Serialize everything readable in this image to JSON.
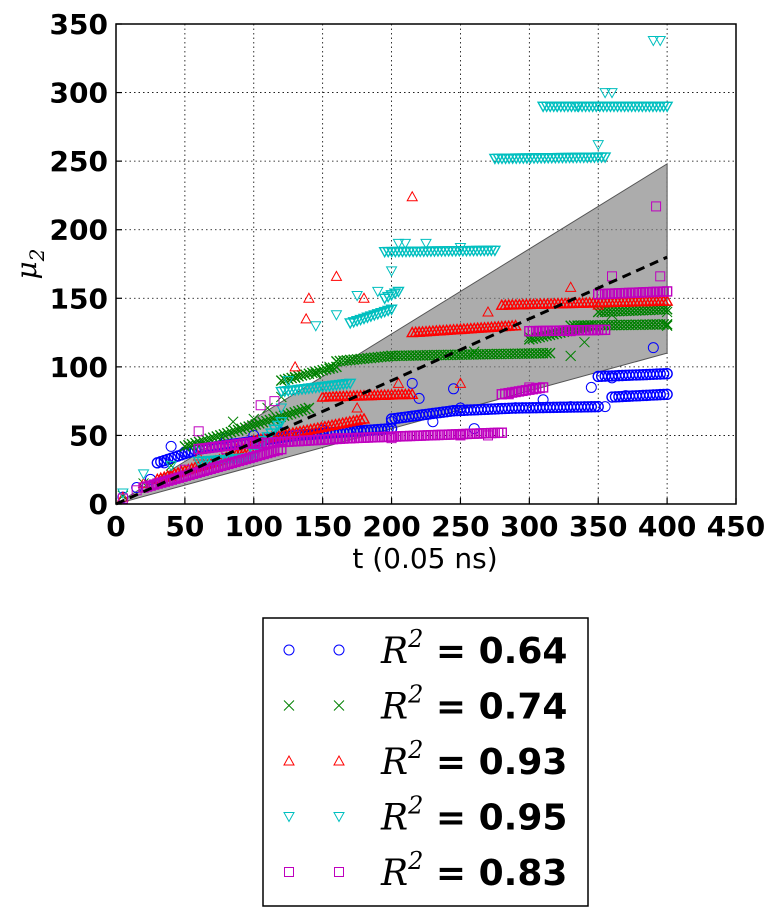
{
  "chart_data": {
    "type": "scatter",
    "title": "",
    "xlabel": "t (0.05 ns)",
    "ylabel": "μ2",
    "ylabel_base": "μ",
    "ylabel_sub": "2",
    "xlim": [
      0,
      450
    ],
    "ylim": [
      0,
      350
    ],
    "xticks": [
      "0",
      "50",
      "100",
      "150",
      "200",
      "250",
      "300",
      "350",
      "400",
      "450"
    ],
    "yticks": [
      "0",
      "50",
      "100",
      "150",
      "200",
      "250",
      "300",
      "350"
    ],
    "grid": true,
    "legend_position": "below",
    "fit_line": {
      "style": "dashed",
      "color": "#000000",
      "x": [
        0,
        400
      ],
      "y": [
        0,
        180
      ]
    },
    "confidence_band": {
      "color": "#808080",
      "x": [
        0,
        400
      ],
      "upper": [
        0,
        248
      ],
      "lower": [
        0,
        110
      ]
    },
    "series": [
      {
        "marker": "circle",
        "color": "#0000ff",
        "legend_label": "R2 = 0.64",
        "points": [
          [
            5,
            5
          ],
          [
            15,
            12
          ],
          [
            25,
            18
          ],
          [
            35,
            30
          ],
          [
            40,
            42
          ],
          [
            50,
            38
          ],
          [
            60,
            42
          ],
          [
            80,
            48
          ],
          [
            100,
            50
          ],
          [
            120,
            52
          ],
          [
            150,
            54
          ],
          [
            175,
            55
          ],
          [
            200,
            60
          ],
          [
            215,
            88
          ],
          [
            220,
            77
          ],
          [
            230,
            60
          ],
          [
            245,
            84
          ],
          [
            250,
            70
          ],
          [
            260,
            55
          ],
          [
            270,
            69
          ],
          [
            300,
            70
          ],
          [
            310,
            76
          ],
          [
            330,
            71
          ],
          [
            345,
            85
          ],
          [
            355,
            71
          ],
          [
            360,
            92
          ],
          [
            370,
            79
          ],
          [
            385,
            79
          ],
          [
            390,
            114
          ],
          [
            400,
            95
          ]
        ],
        "runs": [
          [
            30,
            30,
            60,
            40
          ],
          [
            60,
            40,
            130,
            50
          ],
          [
            130,
            50,
            200,
            55
          ],
          [
            200,
            62,
            245,
            68
          ],
          [
            245,
            68,
            290,
            70
          ],
          [
            290,
            70,
            350,
            71
          ],
          [
            350,
            93,
            400,
            95
          ],
          [
            360,
            78,
            400,
            80
          ]
        ]
      },
      {
        "marker": "x",
        "color": "#008000",
        "legend_label": "R2 = 0.74",
        "points": [
          [
            5,
            6
          ],
          [
            20,
            15
          ],
          [
            40,
            28
          ],
          [
            60,
            42
          ],
          [
            85,
            60
          ],
          [
            100,
            62
          ],
          [
            110,
            70
          ],
          [
            120,
            78
          ],
          [
            130,
            92
          ],
          [
            145,
            95
          ],
          [
            155,
            100
          ],
          [
            170,
            105
          ],
          [
            200,
            108
          ],
          [
            260,
            111
          ],
          [
            300,
            122
          ],
          [
            330,
            108
          ],
          [
            340,
            118
          ],
          [
            360,
            138
          ],
          [
            400,
            140
          ],
          [
            400,
            130
          ]
        ],
        "runs": [
          [
            50,
            42,
            140,
            70
          ],
          [
            120,
            90,
            160,
            100
          ],
          [
            160,
            104,
            200,
            108
          ],
          [
            200,
            108,
            315,
            110
          ],
          [
            300,
            120,
            345,
            130
          ],
          [
            330,
            130,
            400,
            131
          ],
          [
            350,
            140,
            400,
            142
          ]
        ]
      },
      {
        "marker": "triangle-up",
        "color": "#ff0000",
        "legend_label": "R2 = 0.93",
        "points": [
          [
            5,
            5
          ],
          [
            20,
            15
          ],
          [
            40,
            20
          ],
          [
            60,
            35
          ],
          [
            90,
            44
          ],
          [
            130,
            100
          ],
          [
            138,
            135
          ],
          [
            140,
            150
          ],
          [
            160,
            166
          ],
          [
            175,
            70
          ],
          [
            180,
            150
          ],
          [
            205,
            88
          ],
          [
            215,
            224
          ],
          [
            250,
            88
          ],
          [
            270,
            140
          ],
          [
            290,
            130
          ],
          [
            330,
            158
          ],
          [
            350,
            145
          ],
          [
            400,
            148
          ]
        ],
        "runs": [
          [
            30,
            18,
            100,
            40
          ],
          [
            100,
            46,
            180,
            62
          ],
          [
            150,
            78,
            215,
            80
          ],
          [
            215,
            125,
            290,
            130
          ],
          [
            280,
            145,
            400,
            148
          ]
        ]
      },
      {
        "marker": "triangle-down",
        "color": "#00bfbf",
        "legend_label": "R2 = 0.95",
        "points": [
          [
            5,
            8
          ],
          [
            20,
            22
          ],
          [
            40,
            28
          ],
          [
            60,
            38
          ],
          [
            75,
            31
          ],
          [
            100,
            37
          ],
          [
            120,
            70
          ],
          [
            125,
            90
          ],
          [
            145,
            130
          ],
          [
            160,
            138
          ],
          [
            175,
            152
          ],
          [
            190,
            155
          ],
          [
            200,
            170
          ],
          [
            205,
            190
          ],
          [
            210,
            190
          ],
          [
            225,
            190
          ],
          [
            250,
            187
          ],
          [
            310,
            290
          ],
          [
            320,
            290
          ],
          [
            335,
            290
          ],
          [
            350,
            262
          ],
          [
            355,
            300
          ],
          [
            360,
            300
          ],
          [
            390,
            338
          ],
          [
            395,
            338
          ]
        ],
        "runs": [
          [
            60,
            31,
            100,
            34
          ],
          [
            100,
            38,
            120,
            60
          ],
          [
            120,
            82,
            170,
            88
          ],
          [
            170,
            132,
            200,
            142
          ],
          [
            195,
            150,
            205,
            155
          ],
          [
            195,
            184,
            275,
            185
          ],
          [
            275,
            252,
            355,
            253
          ],
          [
            310,
            290,
            400,
            290
          ]
        ]
      },
      {
        "marker": "square",
        "color": "#bf00bf",
        "legend_label": "R2 = 0.83",
        "points": [
          [
            5,
            4
          ],
          [
            15,
            10
          ],
          [
            30,
            15
          ],
          [
            50,
            25
          ],
          [
            60,
            53
          ],
          [
            80,
            40
          ],
          [
            105,
            72
          ],
          [
            115,
            75
          ],
          [
            130,
            50
          ],
          [
            160,
            48
          ],
          [
            200,
            48
          ],
          [
            250,
            50
          ],
          [
            270,
            50
          ],
          [
            285,
            80
          ],
          [
            300,
            85
          ],
          [
            305,
            126
          ],
          [
            330,
            126
          ],
          [
            360,
            166
          ],
          [
            392,
            217
          ],
          [
            395,
            166
          ],
          [
            400,
            155
          ]
        ],
        "runs": [
          [
            20,
            12,
            120,
            40
          ],
          [
            60,
            40,
            100,
            45
          ],
          [
            100,
            44,
            170,
            48
          ],
          [
            170,
            48,
            280,
            52
          ],
          [
            280,
            80,
            310,
            85
          ],
          [
            300,
            126,
            355,
            127
          ],
          [
            350,
            153,
            400,
            155
          ]
        ]
      }
    ]
  },
  "legend": {
    "items": [
      {
        "symbol": "circle",
        "color": "#0000ff",
        "label_base": "R",
        "label_sup": "2",
        "value_text": " = 0.64"
      },
      {
        "symbol": "x",
        "color": "#008000",
        "label_base": "R",
        "label_sup": "2",
        "value_text": " = 0.74"
      },
      {
        "symbol": "triangle-up",
        "color": "#ff0000",
        "label_base": "R",
        "label_sup": "2",
        "value_text": " = 0.93"
      },
      {
        "symbol": "triangle-down",
        "color": "#00bfbf",
        "label_base": "R",
        "label_sup": "2",
        "value_text": " = 0.95"
      },
      {
        "symbol": "square",
        "color": "#bf00bf",
        "label_base": "R",
        "label_sup": "2",
        "value_text": " = 0.83"
      }
    ]
  }
}
